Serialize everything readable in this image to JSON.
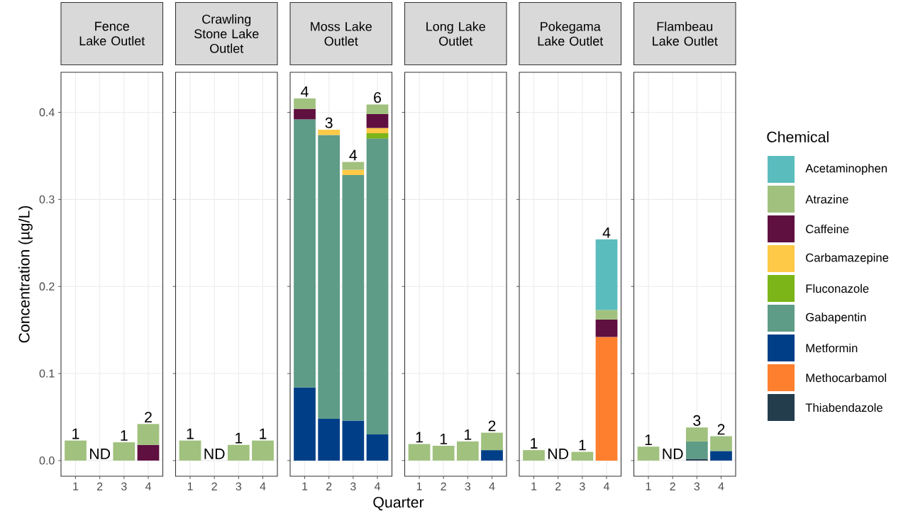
{
  "chart_data": [
    {
      "type": "bar",
      "stacked": true,
      "title": "Fence Lake Outlet",
      "ylabel": "Concentration (µg/L)",
      "categories": [
        "1",
        "2",
        "3",
        "4"
      ],
      "ylim": [
        -0.018,
        0.446
      ],
      "yticks": [
        {
          "value": 0,
          "label": "0.0"
        },
        {
          "value": 0.1,
          "label": "0.1"
        },
        {
          "value": 0.2,
          "label": "0.2"
        },
        {
          "value": 0.3,
          "label": "0.3"
        },
        {
          "value": 0.4,
          "label": "0.4"
        }
      ],
      "grid": true,
      "legend": "right",
      "legend_title": "Chemical",
      "series": [
        {
          "name": "Thiabendazole",
          "color": "#233d4d",
          "values": [
            null,
            null,
            null,
            null
          ]
        },
        {
          "name": "Methocarbamol",
          "color": "#fe7f2d",
          "values": [
            null,
            null,
            null,
            null
          ]
        },
        {
          "name": "Metformin",
          "color": "#003f88",
          "values": [
            null,
            null,
            null,
            null
          ]
        },
        {
          "name": "Gabapentin",
          "color": "#5e9c87",
          "values": [
            null,
            null,
            null,
            null
          ]
        },
        {
          "name": "Fluconazole",
          "color": "#7cb518",
          "values": [
            null,
            null,
            null,
            null
          ]
        },
        {
          "name": "Carbamazepine",
          "color": "#fdc946",
          "values": [
            null,
            null,
            null,
            null
          ]
        },
        {
          "name": "Caffeine",
          "color": "#5f0f40",
          "values": [
            null,
            null,
            null,
            0.018
          ]
        },
        {
          "name": "Atrazine",
          "color": "#a1c17e",
          "values": [
            0.023,
            null,
            0.021,
            0.024
          ]
        },
        {
          "name": "Acetaminophen",
          "color": "#5bbcbd",
          "values": [
            null,
            null,
            null,
            null
          ]
        }
      ],
      "annotations": [
        {
          "text": "1",
          "x": "1",
          "y": 0.023
        },
        "ND",
        {
          "text": "1",
          "x": "3",
          "y": 0.021
        },
        {
          "text": "2",
          "x": "4",
          "y": 0.042
        }
      ]
    },
    {
      "type": "bar",
      "stacked": true,
      "title": "Crawling Stone Lake Outlet",
      "categories": [
        "1",
        "2",
        "3",
        "4"
      ],
      "ylim": [
        -0.018,
        0.446
      ],
      "yticks": [
        0,
        0.1,
        0.2,
        0.3,
        0.4
      ],
      "grid": true,
      "tick_labels": "x",
      "series": [
        {
          "color": "#a1c17e",
          "values": [
            0.023,
            null,
            0.018,
            0.023
          ]
        }
      ],
      "annotations": [
        {
          "text": "1",
          "x": "1",
          "y": 0.023
        },
        "ND",
        {
          "text": "1",
          "x": "3",
          "y": 0.018
        },
        {
          "text": "1",
          "x": "4",
          "y": 0.023
        }
      ]
    },
    {
      "type": "bar",
      "stacked": true,
      "title": "Moss Lake Outlet",
      "xlabel": "Quarter",
      "categories": [
        "1",
        "2",
        "3",
        "4"
      ],
      "ylim": [
        -0.018,
        0.446
      ],
      "yticks": [
        0,
        0.1,
        0.2,
        0.3,
        0.4
      ],
      "grid": true,
      "tick_labels": "x",
      "series": [
        {
          "color": "#003f88",
          "values": [
            0.084,
            0.048,
            0.046,
            0.03
          ]
        },
        {
          "color": "#5e9c87",
          "values": [
            0.308,
            0.326,
            0.282,
            0.34
          ]
        },
        {
          "color": "#7cb518",
          "values": [
            null,
            null,
            null,
            0.006
          ]
        },
        {
          "color": "#fdc946",
          "values": [
            null,
            0.006,
            0.006,
            0.006
          ]
        },
        {
          "color": "#5f0f40",
          "values": [
            0.012,
            null,
            null,
            0.016
          ]
        },
        {
          "color": "#a1c17e",
          "values": [
            0.012,
            null,
            0.009,
            0.011
          ]
        }
      ],
      "annotations": [
        {
          "text": "4",
          "x": "1",
          "y": 0.416
        },
        {
          "text": "3",
          "x": "2",
          "y": 0.38
        },
        {
          "text": "4",
          "x": "3",
          "y": 0.343
        },
        {
          "text": "6",
          "x": "4",
          "y": 0.409
        }
      ]
    },
    {
      "type": "bar",
      "stacked": true,
      "title": "Long Lake Outlet",
      "categories": [
        "1",
        "2",
        "3",
        "4"
      ],
      "ylim": [
        -0.018,
        0.446
      ],
      "yticks": [
        0,
        0.1,
        0.2,
        0.3,
        0.4
      ],
      "grid": true,
      "tick_labels": "x",
      "series": [
        {
          "color": "#003f88",
          "values": [
            null,
            null,
            null,
            0.012
          ]
        },
        {
          "color": "#a1c17e",
          "values": [
            0.019,
            0.017,
            0.022,
            0.02
          ]
        }
      ],
      "annotations": [
        {
          "text": "1",
          "x": "1",
          "y": 0.019
        },
        {
          "text": "1",
          "x": "2",
          "y": 0.017
        },
        {
          "text": "1",
          "x": "3",
          "y": 0.022
        },
        {
          "text": "2",
          "x": "4",
          "y": 0.032
        }
      ]
    },
    {
      "type": "bar",
      "stacked": true,
      "title": "Pokegama Lake Outlet",
      "categories": [
        "1",
        "2",
        "3",
        "4"
      ],
      "ylim": [
        -0.018,
        0.446
      ],
      "yticks": [
        0,
        0.1,
        0.2,
        0.3,
        0.4
      ],
      "grid": true,
      "tick_labels": "x",
      "series": [
        {
          "color": "#fe7f2d",
          "values": [
            null,
            null,
            null,
            0.142
          ]
        },
        {
          "color": "#5f0f40",
          "values": [
            null,
            null,
            null,
            0.02
          ]
        },
        {
          "color": "#a1c17e",
          "values": [
            0.012,
            null,
            0.01,
            0.011
          ]
        },
        {
          "color": "#5bbcbd",
          "values": [
            null,
            null,
            null,
            0.081
          ]
        }
      ],
      "annotations": [
        {
          "text": "1",
          "x": "1",
          "y": 0.012
        },
        "ND",
        {
          "text": "1",
          "x": "3",
          "y": 0.01
        },
        {
          "text": "4",
          "x": "4",
          "y": 0.254
        }
      ]
    },
    {
      "type": "bar",
      "stacked": true,
      "title": "Flambeau Lake Outlet",
      "categories": [
        "1",
        "2",
        "3",
        "4"
      ],
      "ylim": [
        -0.018,
        0.446
      ],
      "yticks": [
        0,
        0.1,
        0.2,
        0.3,
        0.4
      ],
      "grid": true,
      "tick_labels": "x",
      "series": [
        {
          "color": "#233d4d",
          "values": [
            null,
            null,
            0.002,
            null
          ]
        },
        {
          "color": "#003f88",
          "values": [
            null,
            null,
            null,
            0.011
          ]
        },
        {
          "color": "#5e9c87",
          "values": [
            null,
            null,
            0.02,
            null
          ]
        },
        {
          "color": "#a1c17e",
          "values": [
            0.016,
            null,
            0.016,
            0.017
          ]
        }
      ],
      "annotations": [
        {
          "text": "1",
          "x": "1",
          "y": 0.016
        },
        "ND",
        {
          "text": "3",
          "x": "3",
          "y": 0.038
        },
        {
          "text": "2",
          "x": "4",
          "y": 0.028
        }
      ]
    }
  ]
}
